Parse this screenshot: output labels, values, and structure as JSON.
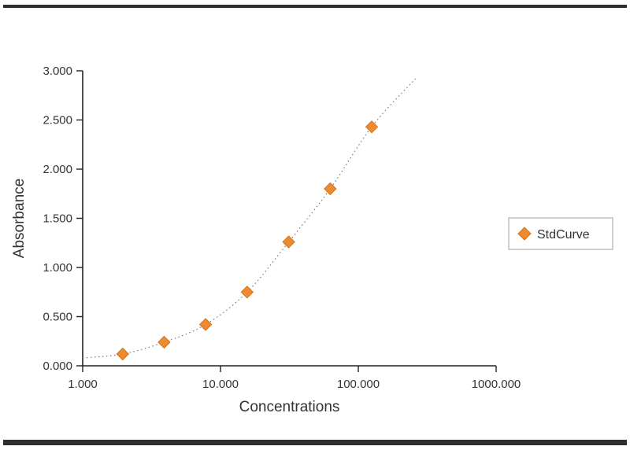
{
  "window": {
    "background": "#ffffff",
    "border_color": "#2f2f2f"
  },
  "chart_data": {
    "type": "scatter",
    "title": "",
    "xlabel": "Concentrations",
    "ylabel": "Absorbance",
    "x_scale": "log",
    "xlim": [
      1,
      1000
    ],
    "ylim": [
      0,
      3
    ],
    "grid": false,
    "x_tick_values": [
      1,
      10,
      100,
      1000
    ],
    "x_tick_labels": [
      "1.000",
      "10.000",
      "100.000",
      "1000.000"
    ],
    "y_tick_values": [
      0,
      0.5,
      1,
      1.5,
      2,
      2.5,
      3
    ],
    "y_tick_labels": [
      "0.000",
      "0.500",
      "1.000",
      "1.500",
      "2.000",
      "2.500",
      "3.000"
    ],
    "series": [
      {
        "name": "StdCurve",
        "marker": "diamond",
        "color": "#EE8A2F",
        "marker_stroke": "#D2751B",
        "x": [
          1.95,
          3.9,
          7.8,
          15.6,
          31.25,
          62.5,
          125
        ],
        "y": [
          0.12,
          0.24,
          0.42,
          0.75,
          1.26,
          1.8,
          2.43
        ]
      }
    ],
    "fit_curve": {
      "style": "dotted",
      "color": "#7a7a7a",
      "x": [
        1.0,
        1.95,
        3.9,
        7.8,
        15.6,
        31.25,
        62.5,
        125,
        260
      ],
      "y": [
        0.08,
        0.12,
        0.24,
        0.42,
        0.75,
        1.26,
        1.8,
        2.43,
        2.92
      ]
    },
    "legend": {
      "label": "StdCurve",
      "position": "right",
      "border_color": "#a0a0a0"
    },
    "axis_color": "#222222",
    "text_color": "#333333"
  }
}
